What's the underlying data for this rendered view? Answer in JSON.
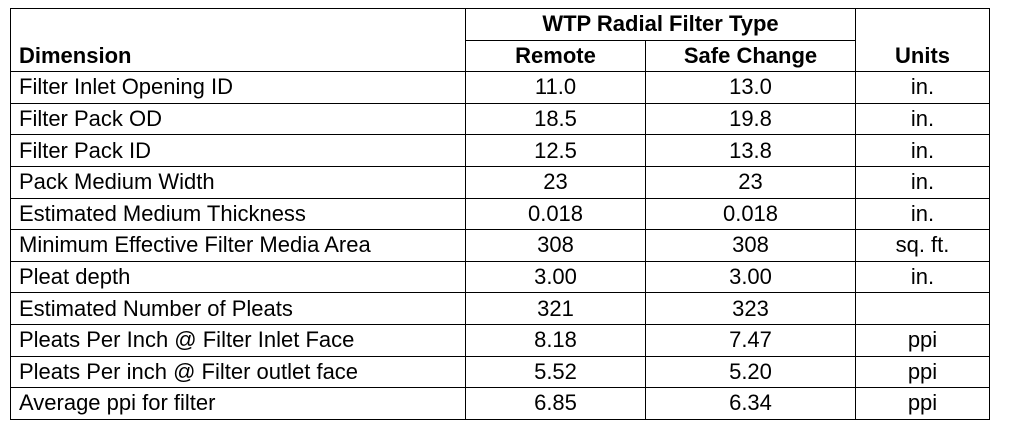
{
  "table": {
    "group_header": "WTP Radial Filter Type",
    "columns": {
      "dimension": "Dimension",
      "remote": "Remote",
      "safe_change": "Safe Change",
      "units": "Units"
    },
    "rows": [
      {
        "dimension": "Filter Inlet Opening ID",
        "remote": "11.0",
        "safe_change": "13.0",
        "units": "in."
      },
      {
        "dimension": "Filter Pack OD",
        "remote": "18.5",
        "safe_change": "19.8",
        "units": "in."
      },
      {
        "dimension": "Filter Pack ID",
        "remote": "12.5",
        "safe_change": "13.8",
        "units": "in."
      },
      {
        "dimension": "Pack Medium Width",
        "remote": "23",
        "safe_change": "23",
        "units": "in."
      },
      {
        "dimension": "Estimated Medium Thickness",
        "remote": "0.018",
        "safe_change": "0.018",
        "units": "in."
      },
      {
        "dimension": "Minimum Effective Filter Media Area",
        "remote": "308",
        "safe_change": "308",
        "units": "sq. ft."
      },
      {
        "dimension": "Pleat depth",
        "remote": "3.00",
        "safe_change": "3.00",
        "units": "in."
      },
      {
        "dimension": "Estimated Number of Pleats",
        "remote": "321",
        "safe_change": "323",
        "units": ""
      },
      {
        "dimension": "Pleats Per Inch @ Filter Inlet Face",
        "remote": "8.18",
        "safe_change": "7.47",
        "units": "ppi"
      },
      {
        "dimension": "Pleats Per inch @ Filter outlet face",
        "remote": "5.52",
        "safe_change": "5.20",
        "units": "ppi"
      },
      {
        "dimension": "Average ppi for filter",
        "remote": "6.85",
        "safe_change": "6.34",
        "units": "ppi"
      }
    ]
  }
}
